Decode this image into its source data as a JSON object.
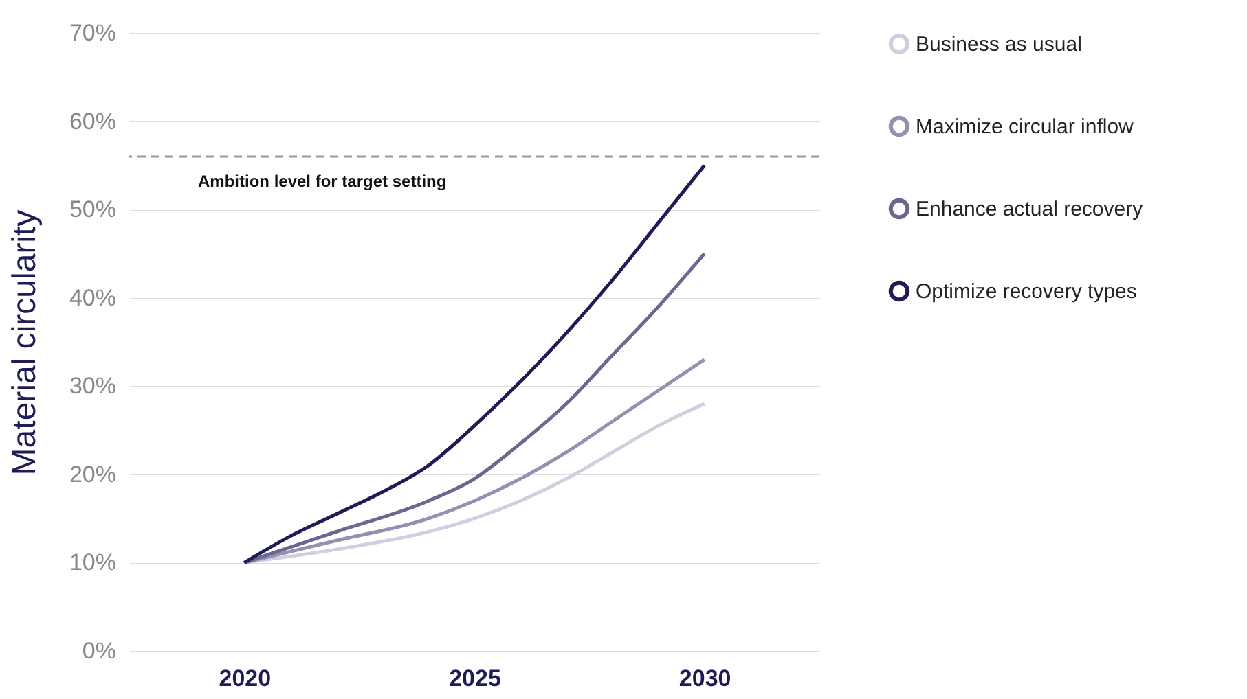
{
  "chart_data": {
    "type": "line",
    "ylabel": "Material circularity",
    "xlim": [
      2017.5,
      2032.5
    ],
    "xticks": [
      2020,
      2025,
      2030
    ],
    "ylim": [
      0,
      70
    ],
    "yticks": [
      {
        "value": 0,
        "label": "0%"
      },
      {
        "value": 10,
        "label": "10%"
      },
      {
        "value": 20,
        "label": "20%"
      },
      {
        "value": 30,
        "label": "30%"
      },
      {
        "value": 40,
        "label": "40%"
      },
      {
        "value": 50,
        "label": "50%"
      },
      {
        "value": 60,
        "label": "60%"
      },
      {
        "value": 70,
        "label": "70%"
      }
    ],
    "grid": "y",
    "legend": "right",
    "line_style": "solid",
    "series": [
      {
        "name": "Business as usual",
        "color": "#d0cfe0",
        "x": [
          2020,
          2022,
          2024,
          2025,
          2026,
          2027,
          2028,
          2029,
          2030
        ],
        "values": [
          10,
          11.5,
          13.5,
          15,
          17,
          19.5,
          22.5,
          25.5,
          28
        ]
      },
      {
        "name": "Maximize circular inflow",
        "color": "#9390b0",
        "x": [
          2020,
          2022,
          2024,
          2025,
          2026,
          2027,
          2028,
          2029,
          2030
        ],
        "values": [
          10,
          12.5,
          15,
          17,
          19.5,
          22.5,
          26,
          29.5,
          33
        ]
      },
      {
        "name": "Enhance actual recovery",
        "color": "#6a6790",
        "x": [
          2020,
          2022,
          2024,
          2025,
          2026,
          2027,
          2028,
          2029,
          2030
        ],
        "values": [
          10,
          13.5,
          17,
          19.5,
          23.5,
          28,
          33.5,
          39,
          45
        ]
      },
      {
        "name": "Optimize recovery types",
        "color": "#1e1b57",
        "x": [
          2020,
          2021,
          2022,
          2023,
          2024,
          2025,
          2026,
          2027,
          2028,
          2029,
          2030
        ],
        "values": [
          10,
          13,
          15.5,
          18,
          21,
          25.5,
          30.5,
          36,
          42,
          48.5,
          55
        ]
      }
    ],
    "ref_lines": [
      {
        "axis": "y",
        "value": 56,
        "label": "Ambition level for target setting",
        "color": "#999999",
        "line_style": "dashed"
      }
    ]
  }
}
